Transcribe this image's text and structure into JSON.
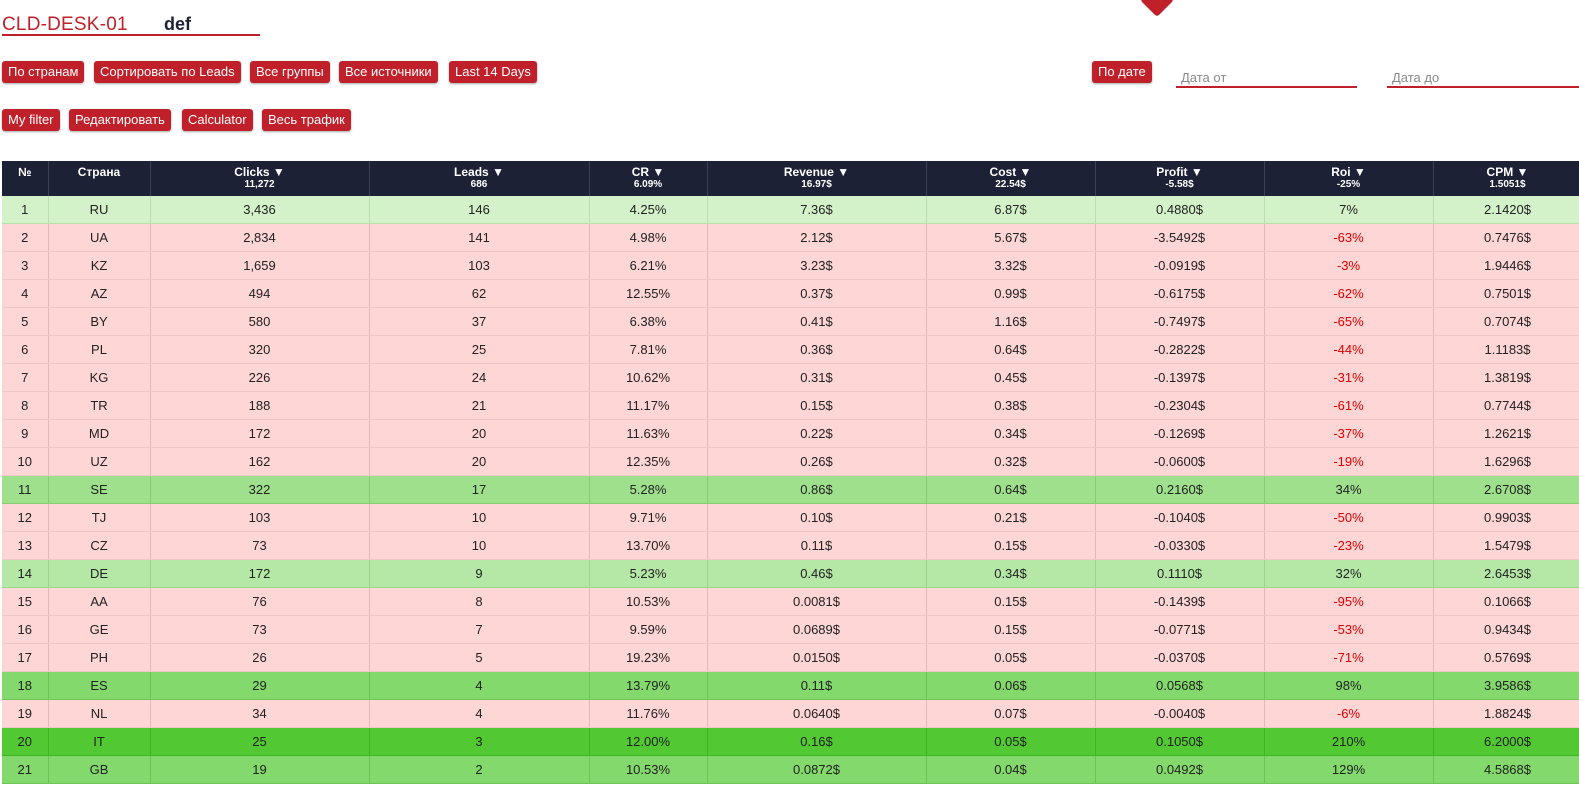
{
  "header": {
    "title": "CLD-DESK-01",
    "input_value": "def"
  },
  "buttons_row1": [
    "По странам",
    "Сортировать по Leads",
    "Все группы",
    "Все источники",
    "Last 14 Days"
  ],
  "buttons_row2": [
    "My filter",
    "Редактировать",
    "Calculator",
    "Весь трафик"
  ],
  "date_filter": {
    "button": "По дате",
    "from_placeholder": "Дата от",
    "to_placeholder": "Дата до"
  },
  "colors": {
    "accent": "#c0202a",
    "header_bg": "#1c2135",
    "negative": "#e00000",
    "loss_row": "#ffd6d6"
  },
  "table": {
    "columns": [
      {
        "label": "№",
        "total": ""
      },
      {
        "label": "Страна",
        "total": ""
      },
      {
        "label": "Clicks ▼",
        "total": "11,272"
      },
      {
        "label": "Leads ▼",
        "total": "686"
      },
      {
        "label": "CR ▼",
        "total": "6.09%"
      },
      {
        "label": "Revenue ▼",
        "total": "16.97$"
      },
      {
        "label": "Cost ▼",
        "total": "22.54$"
      },
      {
        "label": "Profit ▼",
        "total": "-5.58$"
      },
      {
        "label": "Roi ▼",
        "total": "-25%"
      },
      {
        "label": "CPM ▼",
        "total": "1.5051$"
      }
    ],
    "rows": [
      {
        "style": "g1",
        "cells": [
          "1",
          "RU",
          "3,436",
          "146",
          "4.25%",
          "7.36$",
          "6.87$",
          "0.4880$",
          "7%",
          "2.1420$"
        ]
      },
      {
        "style": "pink",
        "cells": [
          "2",
          "UA",
          "2,834",
          "141",
          "4.98%",
          "2.12$",
          "5.67$",
          "-3.5492$",
          "-63%",
          "0.7476$"
        ]
      },
      {
        "style": "pink",
        "cells": [
          "3",
          "KZ",
          "1,659",
          "103",
          "6.21%",
          "3.23$",
          "3.32$",
          "-0.0919$",
          "-3%",
          "1.9446$"
        ]
      },
      {
        "style": "pink",
        "cells": [
          "4",
          "AZ",
          "494",
          "62",
          "12.55%",
          "0.37$",
          "0.99$",
          "-0.6175$",
          "-62%",
          "0.7501$"
        ]
      },
      {
        "style": "pink",
        "cells": [
          "5",
          "BY",
          "580",
          "37",
          "6.38%",
          "0.41$",
          "1.16$",
          "-0.7497$",
          "-65%",
          "0.7074$"
        ]
      },
      {
        "style": "pink",
        "cells": [
          "6",
          "PL",
          "320",
          "25",
          "7.81%",
          "0.36$",
          "0.64$",
          "-0.2822$",
          "-44%",
          "1.1183$"
        ]
      },
      {
        "style": "pink",
        "cells": [
          "7",
          "KG",
          "226",
          "24",
          "10.62%",
          "0.31$",
          "0.45$",
          "-0.1397$",
          "-31%",
          "1.3819$"
        ]
      },
      {
        "style": "pink",
        "cells": [
          "8",
          "TR",
          "188",
          "21",
          "11.17%",
          "0.15$",
          "0.38$",
          "-0.2304$",
          "-61%",
          "0.7744$"
        ]
      },
      {
        "style": "pink",
        "cells": [
          "9",
          "MD",
          "172",
          "20",
          "11.63%",
          "0.22$",
          "0.34$",
          "-0.1269$",
          "-37%",
          "1.2621$"
        ]
      },
      {
        "style": "pink",
        "cells": [
          "10",
          "UZ",
          "162",
          "20",
          "12.35%",
          "0.26$",
          "0.32$",
          "-0.0600$",
          "-19%",
          "1.6296$"
        ]
      },
      {
        "style": "g2",
        "cells": [
          "11",
          "SE",
          "322",
          "17",
          "5.28%",
          "0.86$",
          "0.64$",
          "0.2160$",
          "34%",
          "2.6708$"
        ]
      },
      {
        "style": "pink",
        "cells": [
          "12",
          "TJ",
          "103",
          "10",
          "9.71%",
          "0.10$",
          "0.21$",
          "-0.1040$",
          "-50%",
          "0.9903$"
        ]
      },
      {
        "style": "pink",
        "cells": [
          "13",
          "CZ",
          "73",
          "10",
          "13.70%",
          "0.11$",
          "0.15$",
          "-0.0330$",
          "-23%",
          "1.5479$"
        ]
      },
      {
        "style": "g3",
        "cells": [
          "14",
          "DE",
          "172",
          "9",
          "5.23%",
          "0.46$",
          "0.34$",
          "0.1110$",
          "32%",
          "2.6453$"
        ]
      },
      {
        "style": "pink",
        "cells": [
          "15",
          "AA",
          "76",
          "8",
          "10.53%",
          "0.0081$",
          "0.15$",
          "-0.1439$",
          "-95%",
          "0.1066$"
        ]
      },
      {
        "style": "pink",
        "cells": [
          "16",
          "GE",
          "73",
          "7",
          "9.59%",
          "0.0689$",
          "0.15$",
          "-0.0771$",
          "-53%",
          "0.9434$"
        ]
      },
      {
        "style": "pink",
        "cells": [
          "17",
          "PH",
          "26",
          "5",
          "19.23%",
          "0.0150$",
          "0.05$",
          "-0.0370$",
          "-71%",
          "0.5769$"
        ]
      },
      {
        "style": "g4",
        "cells": [
          "18",
          "ES",
          "29",
          "4",
          "13.79%",
          "0.11$",
          "0.06$",
          "0.0568$",
          "98%",
          "3.9586$"
        ]
      },
      {
        "style": "pink",
        "cells": [
          "19",
          "NL",
          "34",
          "4",
          "11.76%",
          "0.0640$",
          "0.07$",
          "-0.0040$",
          "-6%",
          "1.8824$"
        ]
      },
      {
        "style": "g5",
        "cells": [
          "20",
          "IT",
          "25",
          "3",
          "12.00%",
          "0.16$",
          "0.05$",
          "0.1050$",
          "210%",
          "6.2000$"
        ]
      },
      {
        "style": "g4",
        "cells": [
          "21",
          "GB",
          "19",
          "2",
          "10.53%",
          "0.0872$",
          "0.04$",
          "0.0492$",
          "129%",
          "4.5868$"
        ]
      }
    ]
  }
}
